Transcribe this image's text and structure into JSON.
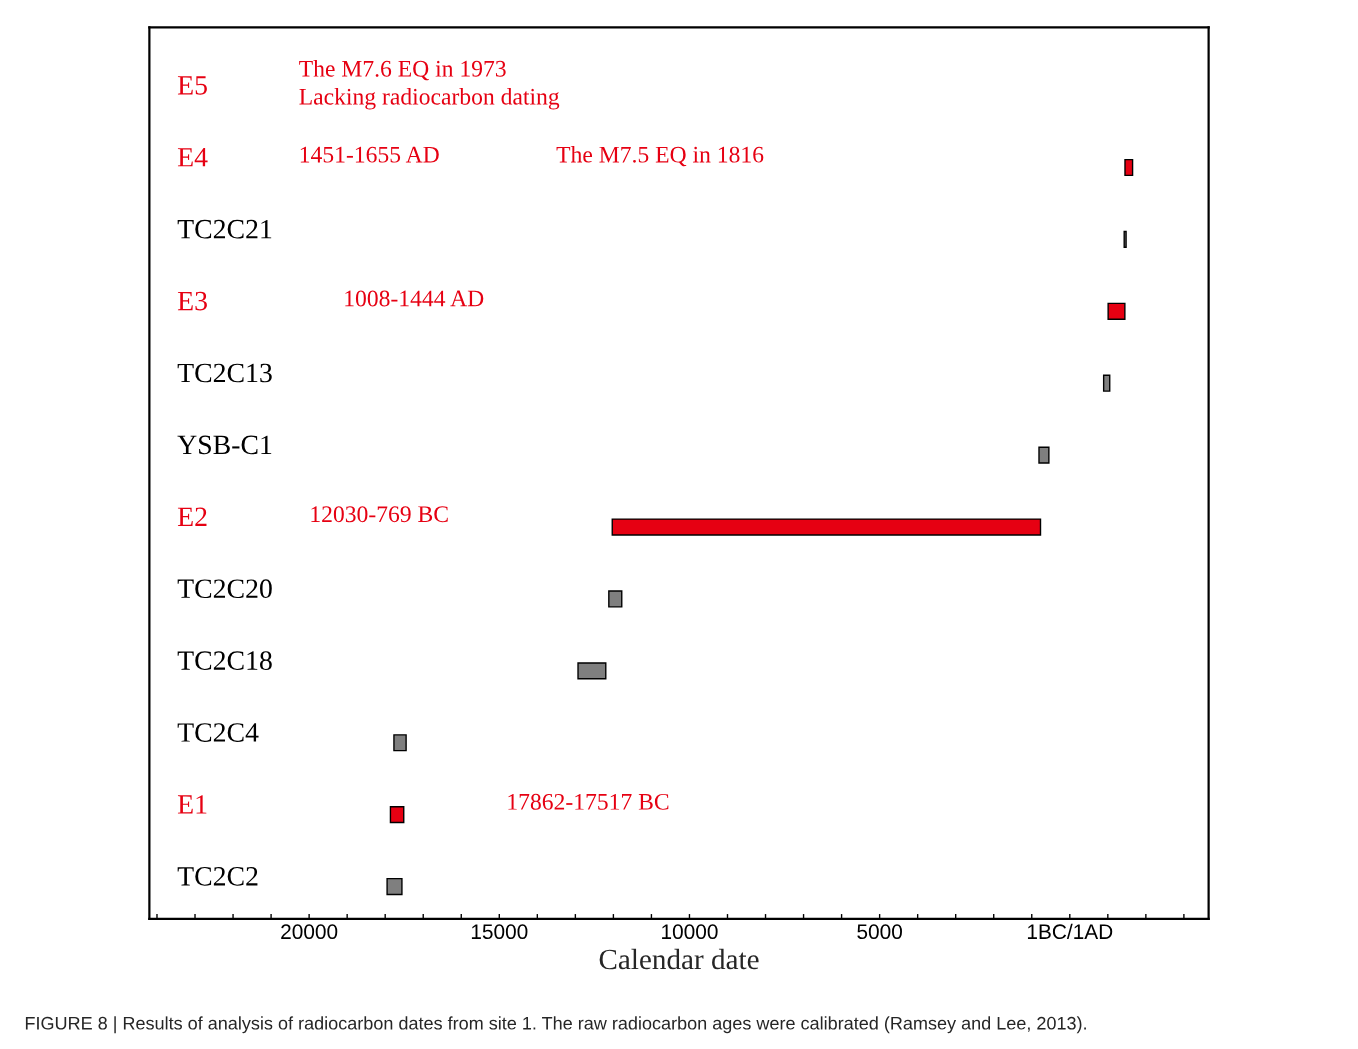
{
  "chart_data": {
    "type": "bar",
    "orientation": "horizontal",
    "xlabel": "Calendar date",
    "categories": [
      "E5",
      "E4",
      "TC2C21",
      "E3",
      "TC2C13",
      "YSB-C1",
      "E2",
      "TC2C20",
      "TC2C18",
      "TC2C4",
      "E1",
      "TC2C2"
    ],
    "base": [
      null,
      -1451,
      -1430,
      -1008,
      -890,
      810,
      12030,
      12120,
      12930,
      17770,
      17862,
      17950
    ],
    "values": [
      null,
      -200,
      -50,
      -440,
      -160,
      -260,
      -11260,
      -340,
      -730,
      -320,
      -350,
      -390
    ],
    "colors": [
      "#e60012",
      "#e60012",
      "#7f7f7f",
      "#e60012",
      "#7f7f7f",
      "#7f7f7f",
      "#e60012",
      "#7f7f7f",
      "#7f7f7f",
      "#7f7f7f",
      "#e60012",
      "#7f7f7f"
    ],
    "xlim": [
      24200,
      -3650
    ],
    "xticks": [
      {
        "value": 24000,
        "label": null
      },
      {
        "value": 23000,
        "label": null
      },
      {
        "value": 22000,
        "label": null
      },
      {
        "value": 21000,
        "label": null
      },
      20000,
      {
        "value": 19000,
        "label": null
      },
      {
        "value": 18000,
        "label": null
      },
      {
        "value": 17000,
        "label": null
      },
      {
        "value": 16000,
        "label": null
      },
      15000,
      {
        "value": 14000,
        "label": null
      },
      {
        "value": 13000,
        "label": null
      },
      {
        "value": 12000,
        "label": null
      },
      {
        "value": 11000,
        "label": null
      },
      10000,
      {
        "value": 9000,
        "label": null
      },
      {
        "value": 8000,
        "label": null
      },
      {
        "value": 7000,
        "label": null
      },
      {
        "value": 6000,
        "label": null
      },
      5000,
      {
        "value": 4000,
        "label": null
      },
      {
        "value": 3000,
        "label": null
      },
      {
        "value": 2000,
        "label": null
      },
      {
        "value": 1000,
        "label": null
      },
      {
        "value": 0,
        "label": "1BC/1AD"
      },
      {
        "value": -1000,
        "label": null
      },
      {
        "value": -2000,
        "label": null
      },
      {
        "value": -3000,
        "label": null
      }
    ],
    "tick_labels": "x",
    "grid": false,
    "legend": false,
    "annotations": [
      "The M7.6 EQ in 1973\nLacking radiocarbon dating",
      "1451-1655 AD",
      "The M7.5 EQ in 1816",
      "1008-1444 AD",
      "12030-769 BC",
      "17862-17517 BC",
      "FIGURE 8 | Results of analysis of radiocarbon dates from site 1. The raw radiocarbon ages were calibrated (Ramsey and Lee, 2013)."
    ]
  }
}
